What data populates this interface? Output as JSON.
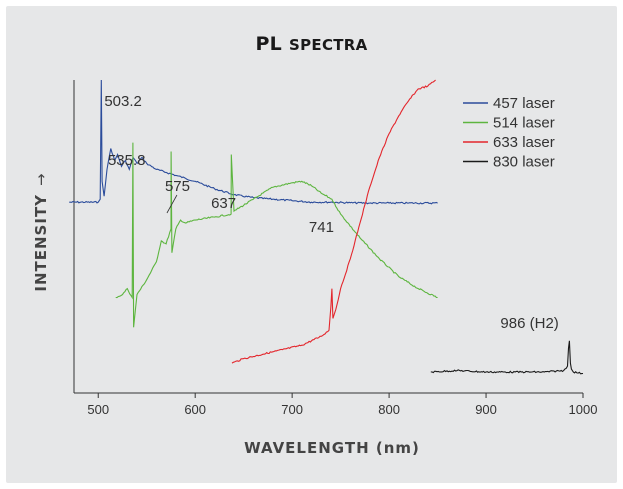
{
  "title": {
    "main": "PL",
    "rest": "Spectra"
  },
  "chart_data": {
    "type": "line",
    "title": "PL Spectra",
    "xlabel": "WAVELENGTH (nm)",
    "ylabel": "INTENSITY",
    "ylabel_arrow": "→",
    "xlim": [
      475,
      1000
    ],
    "xticks": [
      500,
      600,
      700,
      800,
      900,
      1000
    ],
    "y_axis_numeric": false,
    "grid": false,
    "legend_position": "top-right",
    "series": [
      {
        "name": "457 laser",
        "color": "#2b4c9b",
        "x": [
          470,
          500,
          502,
          503.2,
          504,
          506,
          509,
          513,
          517,
          520,
          524,
          528,
          532,
          536,
          540,
          545,
          550,
          560,
          570,
          580,
          590,
          600,
          620,
          640,
          660,
          680,
          700,
          720,
          740,
          760,
          780,
          800,
          820,
          850
        ],
        "y": [
          0.59,
          0.59,
          0.6,
          1.0,
          0.66,
          0.61,
          0.7,
          0.77,
          0.73,
          0.75,
          0.71,
          0.73,
          0.7,
          0.74,
          0.72,
          0.74,
          0.72,
          0.7,
          0.69,
          0.68,
          0.67,
          0.66,
          0.635,
          0.615,
          0.605,
          0.6,
          0.595,
          0.59,
          0.59,
          0.588,
          0.587,
          0.587,
          0.587,
          0.587
        ]
      },
      {
        "name": "514 laser",
        "color": "#5db53f",
        "x": [
          518,
          525,
          530,
          535,
          535.8,
          536.5,
          540,
          550,
          560,
          565,
          570,
          575,
          575.2,
          576,
          580,
          585,
          590,
          600,
          620,
          637,
          637.2,
          640,
          660,
          680,
          700,
          710,
          720,
          730,
          741,
          750,
          770,
          790,
          810,
          830,
          850
        ],
        "y": [
          0.27,
          0.28,
          0.3,
          0.27,
          0.79,
          0.17,
          0.28,
          0.33,
          0.39,
          0.46,
          0.45,
          0.5,
          0.76,
          0.42,
          0.5,
          0.53,
          0.52,
          0.53,
          0.54,
          0.55,
          0.75,
          0.56,
          0.6,
          0.64,
          0.655,
          0.66,
          0.645,
          0.62,
          0.6,
          0.55,
          0.47,
          0.4,
          0.34,
          0.3,
          0.27
        ]
      },
      {
        "name": "633 laser",
        "color": "#e3262c",
        "x": [
          638,
          650,
          670,
          690,
          710,
          730,
          738,
          740,
          741,
          742,
          745,
          750,
          760,
          770,
          780,
          790,
          800,
          810,
          820,
          830,
          840,
          848
        ],
        "y": [
          0.05,
          0.065,
          0.08,
          0.095,
          0.11,
          0.14,
          0.16,
          0.24,
          0.3,
          0.2,
          0.23,
          0.3,
          0.4,
          0.52,
          0.64,
          0.74,
          0.82,
          0.88,
          0.93,
          0.97,
          0.98,
          1.0
        ]
      },
      {
        "name": "830 laser",
        "color": "#1a1a1a",
        "x": [
          843,
          870,
          900,
          930,
          960,
          980,
          984,
          985,
          986,
          987,
          988,
          990,
          1000
        ],
        "y": [
          0.02,
          0.025,
          0.02,
          0.02,
          0.02,
          0.025,
          0.04,
          0.1,
          0.125,
          0.05,
          0.03,
          0.02,
          0.015
        ]
      }
    ],
    "annotations": [
      {
        "text": "503.2",
        "x": 503.2
      },
      {
        "text": "535.8",
        "x": 535.8
      },
      {
        "text": "575",
        "x": 575
      },
      {
        "text": "637",
        "x": 637
      },
      {
        "text": "741",
        "x": 741
      },
      {
        "text": "986 (H2)",
        "x": 986
      }
    ]
  }
}
